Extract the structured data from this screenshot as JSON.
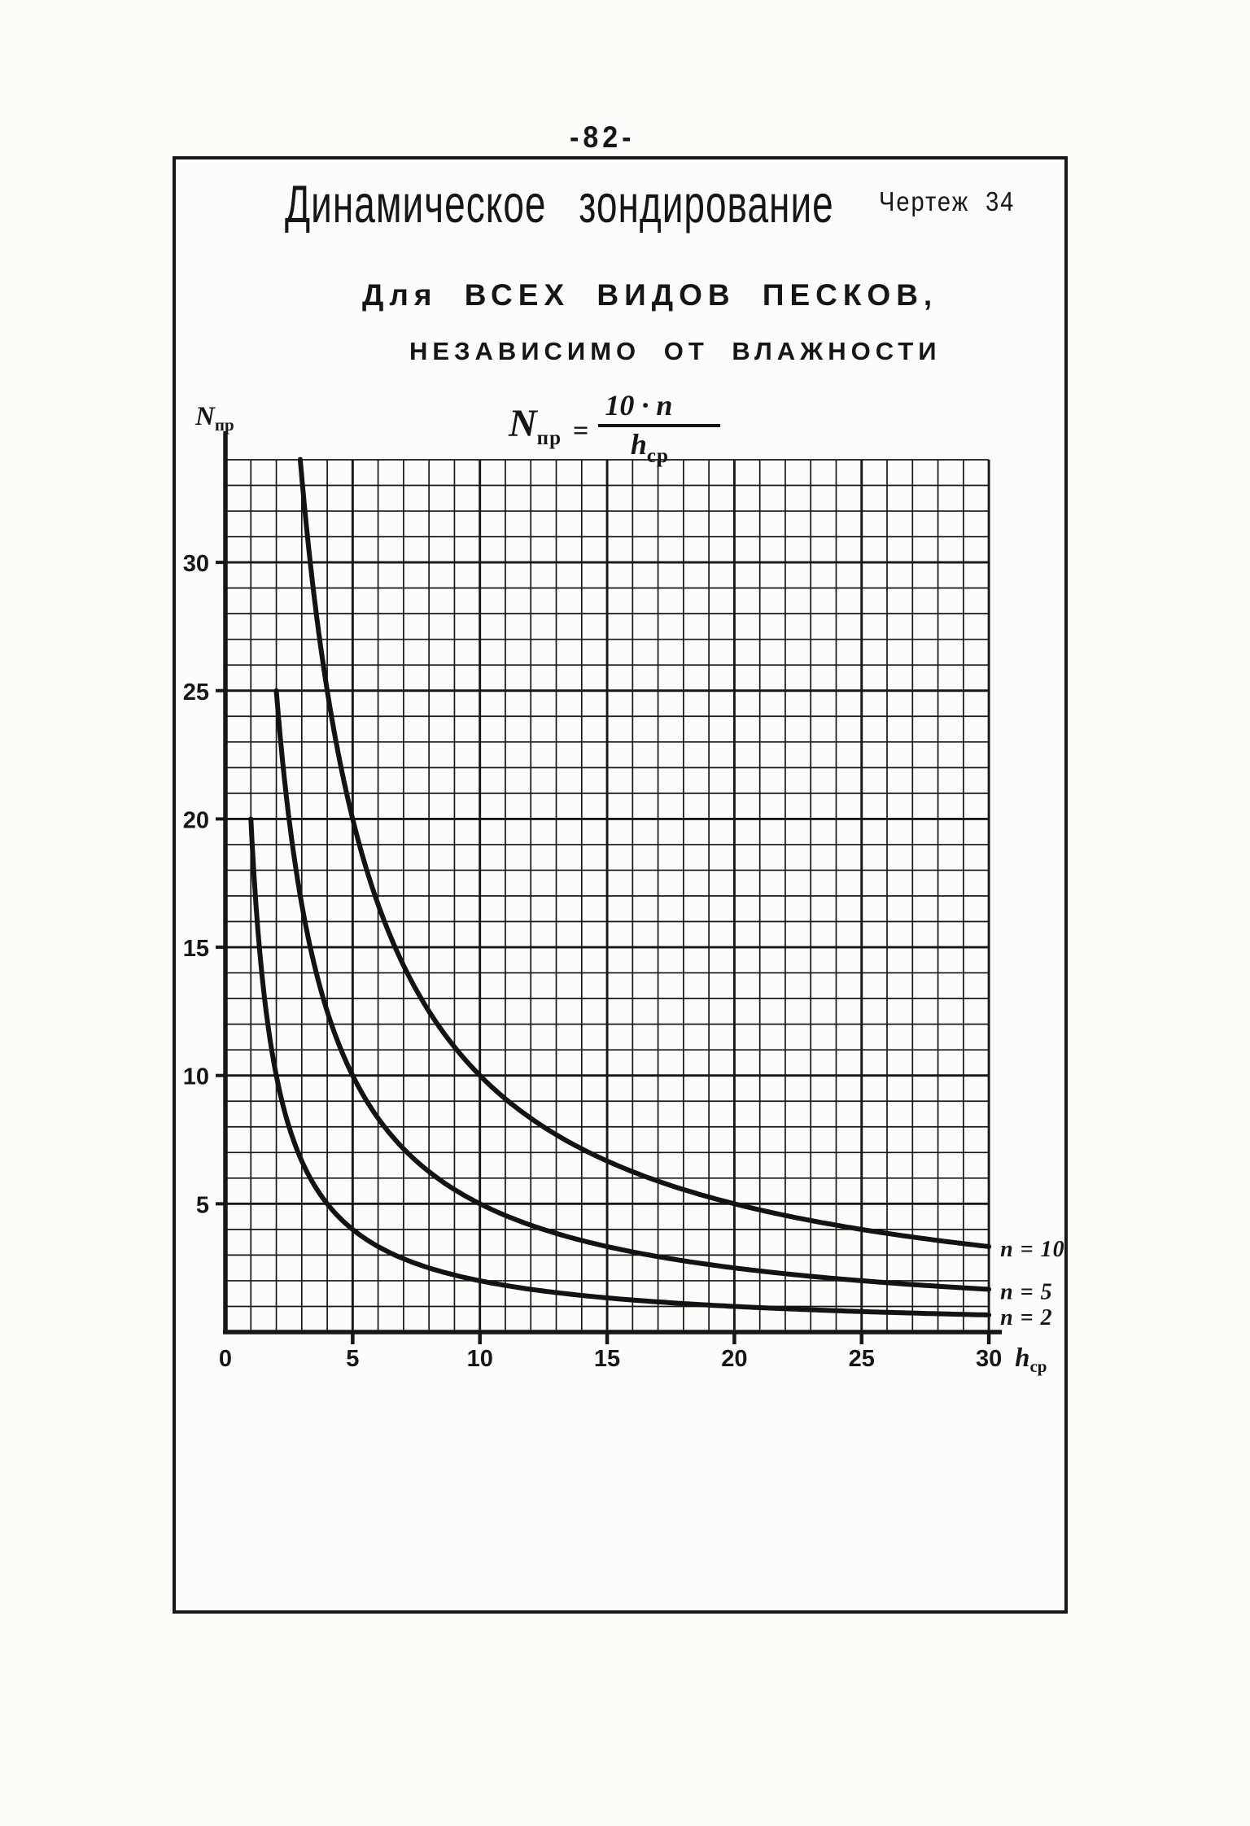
{
  "page": {
    "number": "-82-",
    "title": "Динамическое зондирование",
    "drawing_label": "Чертеж 34",
    "subtitle_line1": "Для ВСЕХ ВИДОВ ПЕСКОВ,",
    "subtitle_line2": "НЕЗАВИСИМО ОТ ВЛАЖНОСТИ",
    "formula": {
      "lhs_var": "N",
      "lhs_sub": "пр",
      "equals": "=",
      "numerator": "10 · n",
      "den_var": "h",
      "den_sub": "ср"
    }
  },
  "chart_data": {
    "type": "line",
    "title": "Динамическое зондирование",
    "subtitle": "Для всех видов песков, независимо от влажности",
    "curve_formula": "Nпр = 10·n / hср",
    "xlabel": "hср",
    "ylabel": "Nпр",
    "xlim": [
      0,
      30
    ],
    "ylim": [
      0,
      34
    ],
    "x_ticks": [
      0,
      5,
      10,
      15,
      20,
      25,
      30
    ],
    "y_ticks": [
      5,
      10,
      15,
      20,
      25,
      30
    ],
    "grid": "on",
    "grid_step": 1,
    "legend_position": "right-at-curve-end",
    "series": [
      {
        "label": "n = 10",
        "n": 10,
        "h_start": 2.94,
        "h_end": 30,
        "points": [
          [
            3,
            33.3
          ],
          [
            4,
            25
          ],
          [
            5,
            20
          ],
          [
            6,
            16.7
          ],
          [
            8,
            12.5
          ],
          [
            10,
            10
          ],
          [
            15,
            6.7
          ],
          [
            20,
            5
          ],
          [
            25,
            4
          ],
          [
            30,
            3.3
          ]
        ]
      },
      {
        "label": "n = 5",
        "n": 5,
        "h_start": 2,
        "h_end": 30,
        "points": [
          [
            2,
            25
          ],
          [
            3,
            16.7
          ],
          [
            4,
            12.5
          ],
          [
            5,
            10
          ],
          [
            7,
            7.1
          ],
          [
            10,
            5
          ],
          [
            15,
            3.3
          ],
          [
            20,
            2.5
          ],
          [
            25,
            2
          ],
          [
            30,
            1.7
          ]
        ]
      },
      {
        "label": "n = 2",
        "n": 2,
        "h_start": 1,
        "h_end": 30,
        "points": [
          [
            1,
            20
          ],
          [
            2,
            10
          ],
          [
            3,
            6.7
          ],
          [
            4,
            5
          ],
          [
            5,
            4
          ],
          [
            7,
            2.9
          ],
          [
            10,
            2
          ],
          [
            15,
            1.3
          ],
          [
            20,
            1
          ],
          [
            25,
            0.8
          ],
          [
            30,
            0.7
          ]
        ]
      }
    ]
  }
}
